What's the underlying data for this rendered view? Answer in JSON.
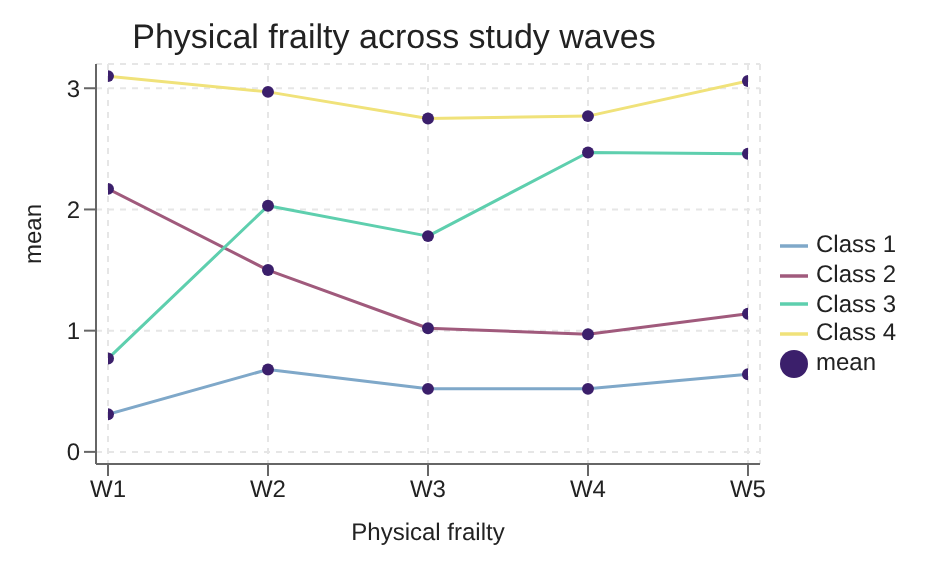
{
  "chart_data": {
    "type": "line",
    "title": "Physical frailty across study waves",
    "xlabel": "Physical frailty",
    "ylabel": "mean",
    "categories": [
      "W1",
      "W2",
      "W3",
      "W4",
      "W5"
    ],
    "series": [
      {
        "name": "Class 1",
        "color": "#7fa8c9",
        "values": [
          0.31,
          0.68,
          0.52,
          0.52,
          0.64
        ]
      },
      {
        "name": "Class 2",
        "color": "#a05a7c",
        "values": [
          2.17,
          1.5,
          1.02,
          0.97,
          1.14
        ]
      },
      {
        "name": "Class 3",
        "color": "#5ecfae",
        "values": [
          0.77,
          2.03,
          1.78,
          2.47,
          2.46
        ]
      },
      {
        "name": "Class 4",
        "color": "#f0e27a",
        "values": [
          3.1,
          2.97,
          2.75,
          2.77,
          3.06
        ]
      },
      {
        "name": "mean",
        "type": "scatter",
        "marker": "circle",
        "color": "#3b1f6b",
        "x": [
          "W1",
          "W2",
          "W3",
          "W4",
          "W5",
          "W1",
          "W2",
          "W3",
          "W4",
          "W5",
          "W1",
          "W2",
          "W3",
          "W4",
          "W5",
          "W1",
          "W2",
          "W3",
          "W4",
          "W5"
        ],
        "values": [
          0.31,
          0.68,
          0.52,
          0.52,
          0.64,
          2.17,
          1.5,
          1.02,
          0.97,
          1.14,
          0.77,
          2.03,
          1.78,
          2.47,
          2.46,
          3.1,
          2.97,
          2.75,
          2.77,
          3.06
        ]
      }
    ],
    "ylim": [
      -0.1,
      3.2
    ],
    "yticks": [
      0,
      1,
      2,
      3
    ],
    "grid": true,
    "legend": "right",
    "line_style": "solid"
  }
}
